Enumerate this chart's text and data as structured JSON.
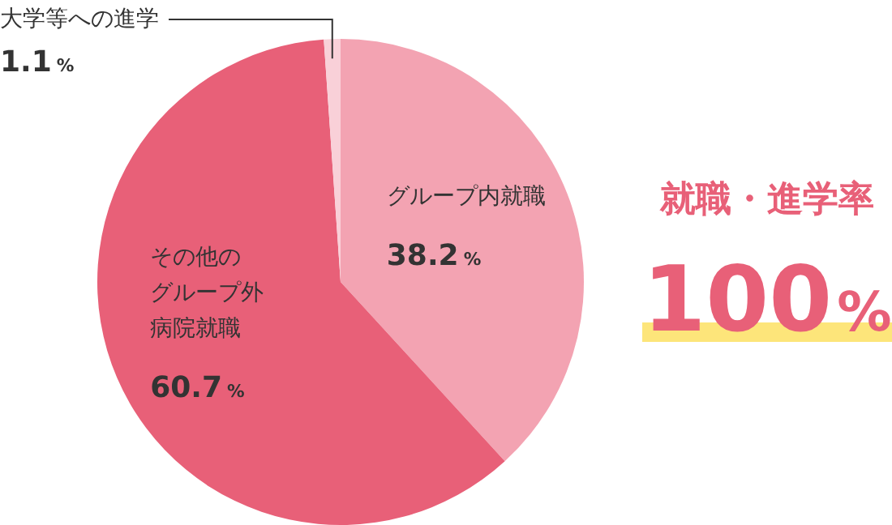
{
  "chart_data": {
    "type": "pie",
    "categories": [
      "グループ内就職",
      "その他のグループ外病院就職",
      "大学等への進学"
    ],
    "values": [
      38.2,
      60.7,
      1.1
    ],
    "colors": [
      "#f3a3b2",
      "#e86078",
      "#f9d0d8"
    ],
    "value_labels": [
      "38.2%",
      "60.7%",
      "1.1%"
    ],
    "annotations": [
      "就職・進学率",
      "100%"
    ]
  }
}
